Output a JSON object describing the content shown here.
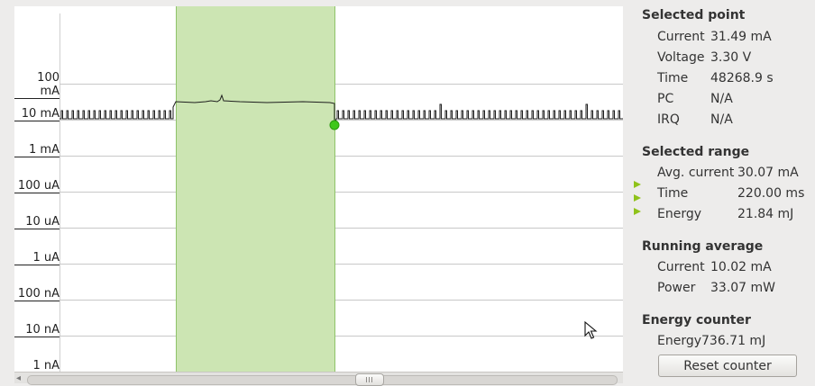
{
  "plot": {
    "y_labels": [
      "100 mA",
      "10 mA",
      "1 mA",
      "100 uA",
      "10 uA",
      "1 uA",
      "100 nA",
      "10 nA",
      "1 nA"
    ],
    "selection_color": "#cce5b3",
    "selection_border": "#8fc36a",
    "marker_color": "#3ec71b"
  },
  "selected_point": {
    "title": "Selected point",
    "rows": [
      {
        "label": "Current",
        "value": "31.49 mA"
      },
      {
        "label": "Voltage",
        "value": "3.30 V"
      },
      {
        "label": "Time",
        "value": "48268.9 s"
      },
      {
        "label": "PC",
        "value": "N/A"
      },
      {
        "label": "IRQ",
        "value": "N/A"
      }
    ]
  },
  "selected_range": {
    "title": "Selected range",
    "rows": [
      {
        "label": "Avg. current",
        "value": "30.07 mA"
      },
      {
        "label": "Time",
        "value": "220.00 ms"
      },
      {
        "label": "Energy",
        "value": "21.84 mJ"
      }
    ]
  },
  "running_average": {
    "title": "Running average",
    "rows": [
      {
        "label": "Current",
        "value": "10.02 mA"
      },
      {
        "label": "Power",
        "value": "33.07 mW"
      }
    ]
  },
  "energy_counter": {
    "title": "Energy counter",
    "rows": [
      {
        "label": "Energy",
        "value": "736.71 mJ"
      }
    ],
    "reset_label": "Reset counter"
  }
}
